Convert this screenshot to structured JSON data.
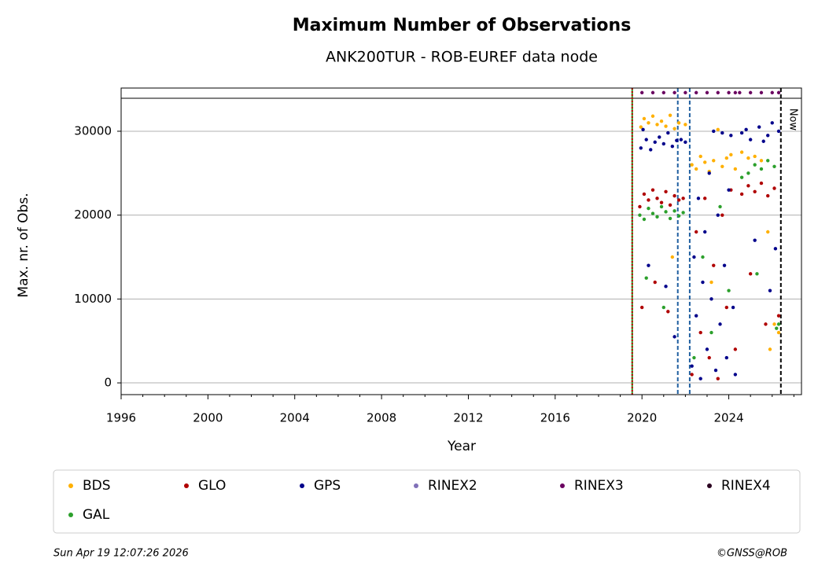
{
  "chart_data": {
    "type": "scatter",
    "title": "Maximum Number of Observations",
    "subtitle": "ANK200TUR - ROB-EUREF data node",
    "x_label": "Year",
    "y_label": "Max. nr. of Obs.",
    "xlim": [
      1996,
      2027.35
    ],
    "ylim": [
      -1400,
      35150
    ],
    "xticks": [
      1996,
      2000,
      2004,
      2008,
      2012,
      2016,
      2020,
      2024
    ],
    "yticks": [
      0,
      10000,
      20000,
      30000
    ],
    "grid": true,
    "vlines": [
      {
        "x": 2019.55,
        "color": "#2ca02c",
        "dash": "solid"
      },
      {
        "x": 2019.55,
        "color": "#c00000",
        "dash": "dotted"
      },
      {
        "x": 2021.65,
        "color": "#1f5fa0",
        "dash": "dashed"
      },
      {
        "x": 2022.2,
        "color": "#1f5fa0",
        "dash": "dashed"
      },
      {
        "x": 2026.4,
        "color": "#000000",
        "dash": "dashed",
        "label": "Now"
      }
    ],
    "series": [
      {
        "name": "BDS",
        "color": "#ffb000",
        "x": [
          2019.95,
          2020.1,
          2020.3,
          2020.5,
          2020.7,
          2020.9,
          2021.1,
          2021.3,
          2021.5,
          2021.7,
          2022.0,
          2022.3,
          2022.5,
          2022.7,
          2022.9,
          2023.1,
          2023.3,
          2023.5,
          2023.7,
          2023.9,
          2024.1,
          2024.3,
          2024.6,
          2024.9,
          2025.2,
          2025.5,
          2025.8,
          2026.1,
          2026.3,
          2021.4,
          2023.2,
          2025.9
        ],
        "values": [
          30500,
          31500,
          31000,
          31800,
          30800,
          31200,
          30600,
          31900,
          30300,
          31000,
          30800,
          26000,
          25500,
          27000,
          26300,
          25200,
          26500,
          30200,
          25800,
          26800,
          27200,
          25500,
          27500,
          26800,
          27000,
          26500,
          18000,
          7000,
          6000,
          15000,
          12000,
          4000
        ]
      },
      {
        "name": "GLO",
        "color": "#b00000",
        "x": [
          2019.9,
          2020.1,
          2020.3,
          2020.5,
          2020.7,
          2020.9,
          2021.1,
          2021.3,
          2021.5,
          2021.7,
          2021.9,
          2020.0,
          2020.6,
          2021.2,
          2022.3,
          2022.5,
          2022.7,
          2022.9,
          2023.1,
          2023.3,
          2023.5,
          2023.7,
          2023.9,
          2024.1,
          2024.3,
          2024.6,
          2024.9,
          2025.2,
          2025.5,
          2025.8,
          2026.1,
          2026.3,
          2025.0,
          2025.7
        ],
        "values": [
          21000,
          22500,
          21800,
          23000,
          22000,
          21500,
          22800,
          21200,
          22300,
          21800,
          22000,
          9000,
          12000,
          8500,
          1000,
          18000,
          6000,
          22000,
          3000,
          14000,
          500,
          20000,
          9000,
          23000,
          4000,
          22500,
          23500,
          22800,
          23800,
          22300,
          23200,
          8000,
          13000,
          7000
        ]
      },
      {
        "name": "GPS",
        "color": "#00008b",
        "x": [
          2019.95,
          2020.05,
          2020.2,
          2020.3,
          2020.4,
          2020.6,
          2020.8,
          2021.0,
          2021.1,
          2021.2,
          2021.4,
          2021.5,
          2021.6,
          2021.8,
          2022.0,
          2022.3,
          2022.4,
          2022.5,
          2022.6,
          2022.7,
          2022.8,
          2022.9,
          2023.0,
          2023.1,
          2023.2,
          2023.3,
          2023.4,
          2023.5,
          2023.6,
          2023.7,
          2023.8,
          2023.9,
          2024.0,
          2024.1,
          2024.2,
          2024.3,
          2024.6,
          2024.8,
          2025.0,
          2025.2,
          2025.4,
          2025.6,
          2025.8,
          2025.9,
          2026.0,
          2026.15,
          2026.3
        ],
        "values": [
          28000,
          30200,
          29000,
          14000,
          27800,
          28700,
          29300,
          28500,
          11500,
          29800,
          28200,
          5500,
          28900,
          29000,
          28700,
          2000,
          15000,
          8000,
          22000,
          500,
          12000,
          18000,
          4000,
          25000,
          10000,
          30000,
          1500,
          20000,
          7000,
          29800,
          14000,
          3000,
          23000,
          29500,
          9000,
          1000,
          29800,
          30200,
          29000,
          17000,
          30500,
          28800,
          29500,
          11000,
          31000,
          16000,
          30000
        ]
      },
      {
        "name": "RINEX2",
        "color": "#8070b8",
        "x": [],
        "values": []
      },
      {
        "name": "RINEX3",
        "color": "#6a0060",
        "x": [
          2020.0,
          2020.5,
          2021.0,
          2021.5,
          2022.0,
          2022.5,
          2023.0,
          2023.5,
          2024.0,
          2024.3,
          2024.5,
          2025.0,
          2025.5,
          2026.0,
          2026.3
        ],
        "values": [
          34600,
          34600,
          34600,
          34600,
          34600,
          34600,
          34600,
          34600,
          34600,
          34600,
          34600,
          34600,
          34600,
          34600,
          34600
        ]
      },
      {
        "name": "RINEX4",
        "color": "#2a0020",
        "x": [],
        "values": []
      },
      {
        "name": "GAL",
        "color": "#2ca02c",
        "x": [
          2019.9,
          2020.1,
          2020.3,
          2020.5,
          2020.7,
          2020.9,
          2021.1,
          2021.3,
          2021.5,
          2021.7,
          2021.9,
          2020.2,
          2021.0,
          2022.4,
          2022.8,
          2023.2,
          2023.6,
          2024.0,
          2024.6,
          2024.9,
          2025.2,
          2025.5,
          2025.8,
          2026.1,
          2026.3,
          2025.3,
          2026.2
        ],
        "values": [
          20000,
          19500,
          20800,
          20200,
          19800,
          21000,
          20400,
          19600,
          20500,
          19900,
          20300,
          12500,
          9000,
          3000,
          15000,
          6000,
          21000,
          11000,
          24500,
          25000,
          26000,
          25500,
          26500,
          25800,
          7000,
          13000,
          6500
        ]
      }
    ],
    "footer_left": "Sun Apr 19 12:07:26 2026",
    "footer_right": "©GNSS@ROB"
  }
}
